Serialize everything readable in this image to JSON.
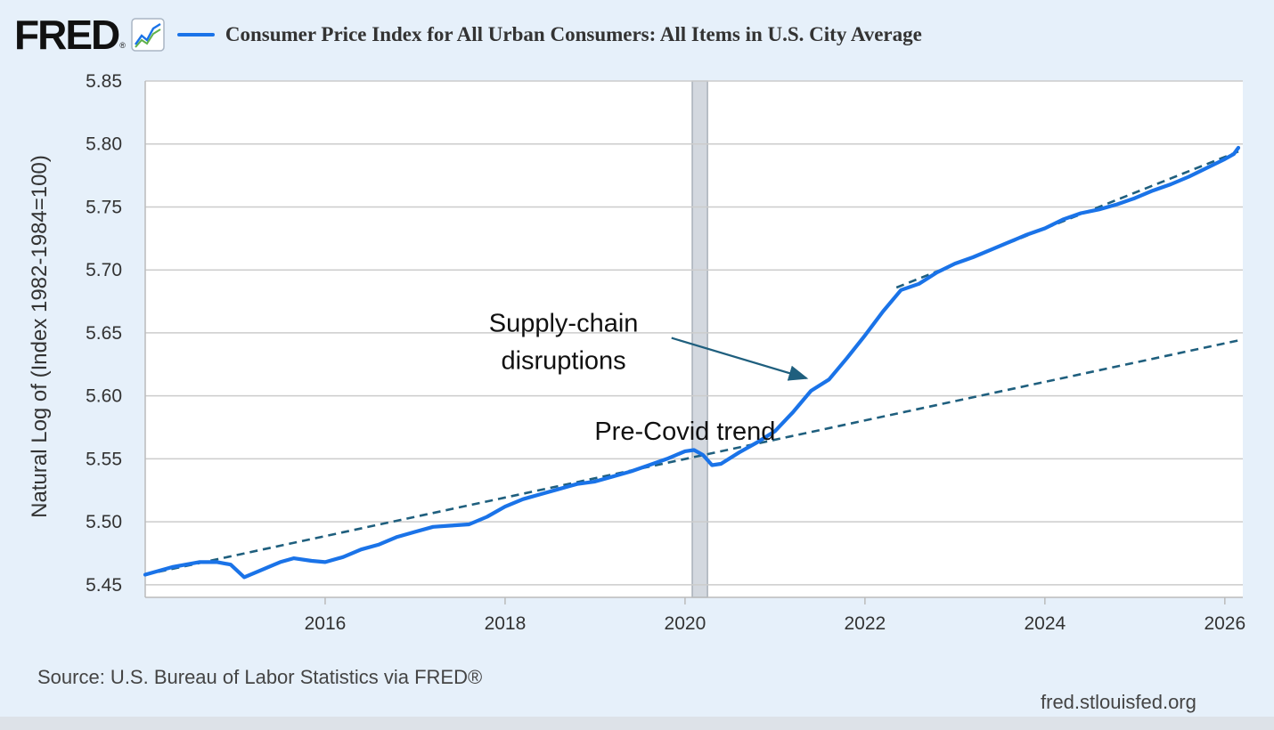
{
  "header": {
    "logo_text": "FRED",
    "logo_reg": "®",
    "logo_icon": "line-chart-icon",
    "title": "Consumer Price Index for All Urban Consumers: All Items in U.S. City Average"
  },
  "colors": {
    "series": "#1a73e8",
    "trend": "#1f5f7e",
    "recession": "#d3d8df",
    "grid": "#cccccc",
    "background": "#e6f0fa"
  },
  "footer": {
    "source": "Source: U.S. Bureau of Labor Statistics via FRED®",
    "site": "fred.stlouisfed.org"
  },
  "chart_data": {
    "type": "line",
    "ylabel": "Natural Log of (Index 1982-1984=100)",
    "xlim": [
      2014.0,
      2026.2
    ],
    "ylim": [
      5.44,
      5.85
    ],
    "x_ticks": [
      2016,
      2018,
      2020,
      2022,
      2024,
      2026
    ],
    "y_ticks": [
      5.45,
      5.5,
      5.55,
      5.6,
      5.65,
      5.7,
      5.75,
      5.8,
      5.85
    ],
    "y_tick_labels": [
      "5.45",
      "5.50",
      "5.55",
      "5.60",
      "5.65",
      "5.70",
      "5.75",
      "5.80",
      "5.85"
    ],
    "grid": true,
    "recession_shading": [
      2020.08,
      2020.25
    ],
    "series": [
      {
        "x": [
          2014.0,
          2014.3,
          2014.6,
          2014.8,
          2014.95,
          2015.1,
          2015.3,
          2015.5,
          2015.65,
          2015.85,
          2016.0,
          2016.2,
          2016.4,
          2016.6,
          2016.8,
          2017.0,
          2017.2,
          2017.4,
          2017.6,
          2017.8,
          2018.0,
          2018.2,
          2018.4,
          2018.6,
          2018.8,
          2019.0,
          2019.2,
          2019.4,
          2019.6,
          2019.8,
          2020.0,
          2020.1,
          2020.2,
          2020.3,
          2020.4,
          2020.6,
          2020.8,
          2021.0,
          2021.2,
          2021.4,
          2021.6,
          2021.8,
          2022.0,
          2022.2,
          2022.4,
          2022.6,
          2022.8,
          2023.0,
          2023.2,
          2023.4,
          2023.6,
          2023.8,
          2024.0,
          2024.2,
          2024.4,
          2024.6,
          2024.8,
          2025.0,
          2025.2,
          2025.4,
          2025.6,
          2025.8,
          2026.0,
          2026.1,
          2026.15
        ],
        "values": [
          5.458,
          5.464,
          5.468,
          5.468,
          5.466,
          5.456,
          5.462,
          5.468,
          5.471,
          5.469,
          5.468,
          5.472,
          5.478,
          5.482,
          5.488,
          5.492,
          5.496,
          5.497,
          5.498,
          5.504,
          5.512,
          5.518,
          5.522,
          5.526,
          5.53,
          5.532,
          5.536,
          5.54,
          5.545,
          5.55,
          5.556,
          5.557,
          5.553,
          5.545,
          5.546,
          5.555,
          5.563,
          5.572,
          5.587,
          5.604,
          5.613,
          5.63,
          5.648,
          5.667,
          5.684,
          5.689,
          5.698,
          5.705,
          5.71,
          5.716,
          5.722,
          5.728,
          5.733,
          5.74,
          5.745,
          5.748,
          5.752,
          5.757,
          5.763,
          5.768,
          5.774,
          5.781,
          5.788,
          5.792,
          5.797
        ]
      }
    ],
    "trend_lines": [
      {
        "x": [
          2014.0,
          2026.15
        ],
        "values": [
          5.458,
          5.644
        ]
      },
      {
        "x": [
          2022.35,
          2026.15
        ],
        "values": [
          5.686,
          5.794
        ]
      }
    ],
    "annotations": [
      {
        "text_lines": [
          "Supply-chain",
          "disruptions"
        ],
        "x": 2018.65,
        "y": 5.651,
        "arrow_from": [
          2019.85,
          5.646
        ],
        "arrow_to": [
          2021.35,
          5.614
        ]
      },
      {
        "text": "Pre-Covid trend",
        "x": 2020.0,
        "y": 5.565
      }
    ]
  }
}
